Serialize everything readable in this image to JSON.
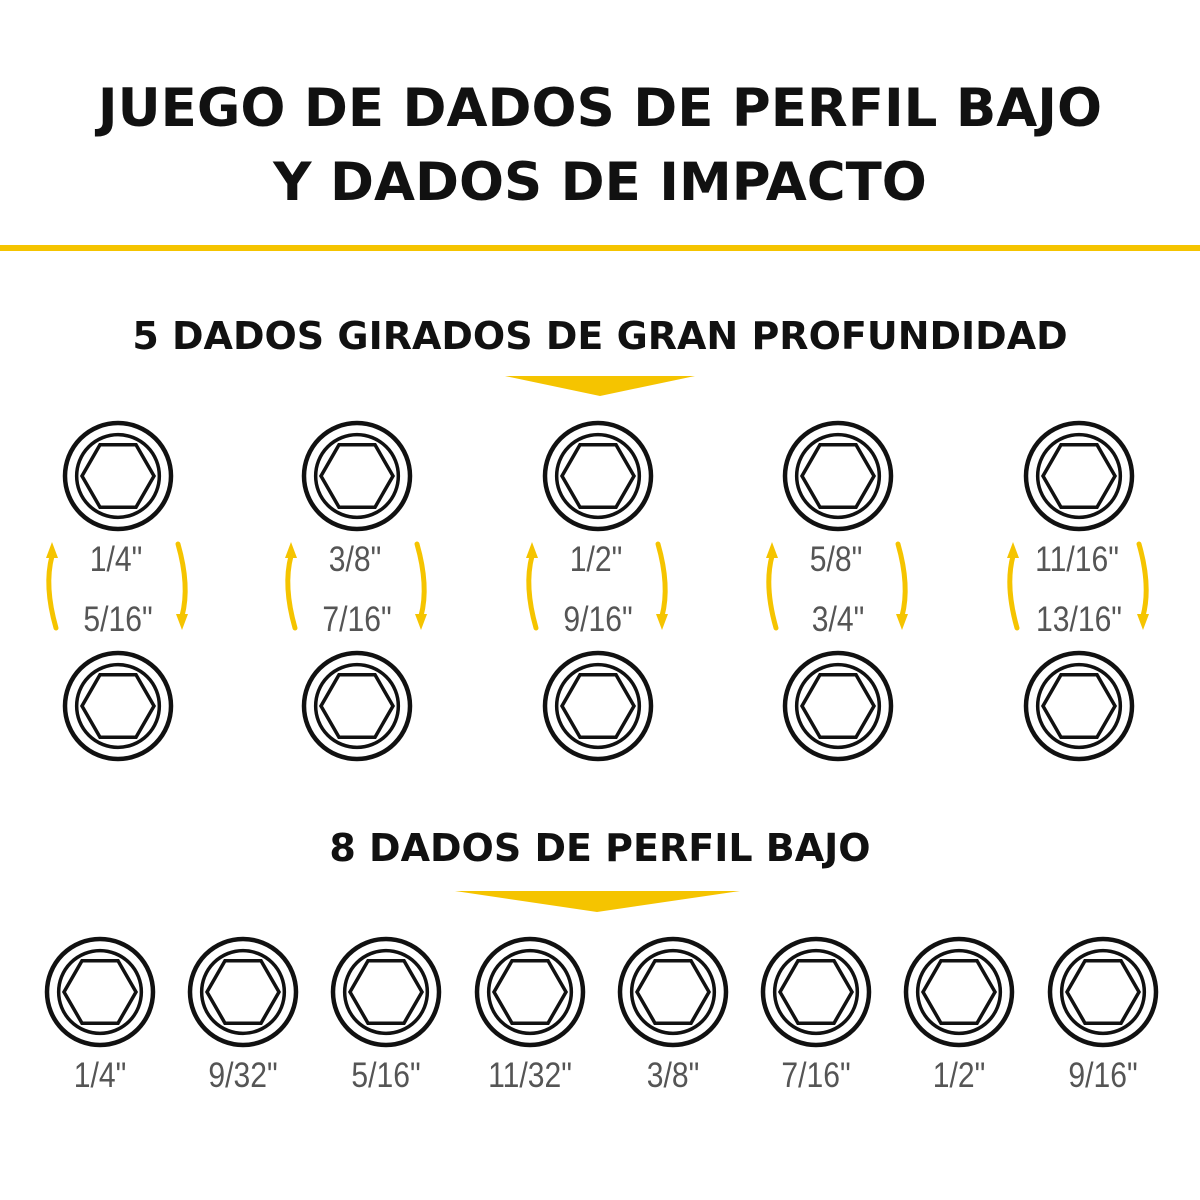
{
  "header": {
    "title_line_1": "JUEGO DE DADOS DE PERFIL BAJO",
    "title_line_2": "Y DADOS DE IMPACTO"
  },
  "colors": {
    "accent": "#f5c400",
    "text": "#111111",
    "label": "#555555",
    "outline": "#111111"
  },
  "deep_sockets": {
    "title": "5 DADOS GIRADOS DE GRAN PROFUNDIDAD",
    "pairs": [
      {
        "top": "1/4\"",
        "bottom": "5/16\""
      },
      {
        "top": "3/8\"",
        "bottom": "7/16\""
      },
      {
        "top": "1/2\"",
        "bottom": "9/16\""
      },
      {
        "top": "5/8\"",
        "bottom": "3/4\""
      },
      {
        "top": "11/16\"",
        "bottom": "13/16\""
      }
    ]
  },
  "low_profile_sockets": {
    "title": "8 DADOS DE PERFIL BAJO",
    "sizes": [
      "1/4\"",
      "9/32\"",
      "5/16\"",
      "11/32\"",
      "3/8\"",
      "7/16\"",
      "1/2\"",
      "9/16\""
    ]
  }
}
